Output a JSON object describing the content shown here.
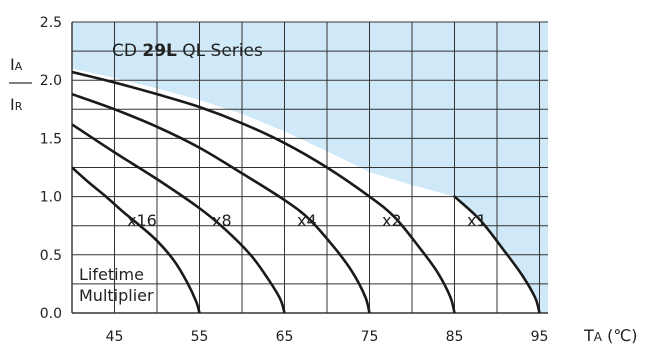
{
  "chart_data": {
    "type": "line",
    "title_prefix": "CD ",
    "title_bold": "29L",
    "title_suffix": " QL Series",
    "ylabel_top": "I",
    "ylabel_top_sub": "A",
    "ylabel_bottom": "I",
    "ylabel_bottom_sub": "R",
    "xlabel_main": "T",
    "xlabel_sub": "A",
    "xlabel_unit": " (℃)",
    "xlim": [
      40,
      96
    ],
    "ylim": [
      0,
      2.5
    ],
    "x_ticks": [
      45,
      55,
      65,
      75,
      85,
      95
    ],
    "y_ticks": [
      0.0,
      0.5,
      1.0,
      1.5,
      2.0,
      2.5
    ],
    "y_tick_labels": [
      "0.0",
      "0.5",
      "1.0",
      "1.5",
      "2.0",
      "2.5"
    ],
    "grid": true,
    "shading_color": "#cfe9f8",
    "curve_color": "#1a1a1a",
    "grid_color": "#333333",
    "annotation_lines": [
      "Lifetime",
      "Multiplier"
    ],
    "series": [
      {
        "name": "x16",
        "points": [
          [
            40,
            1.25
          ],
          [
            42,
            1.12
          ],
          [
            44,
            1.0
          ],
          [
            46,
            0.87
          ],
          [
            48,
            0.75
          ],
          [
            50,
            0.62
          ],
          [
            52,
            0.45
          ],
          [
            53.5,
            0.27
          ],
          [
            54.6,
            0.1
          ],
          [
            55,
            0.0
          ]
        ]
      },
      {
        "name": "x8",
        "points": [
          [
            40,
            1.62
          ],
          [
            45,
            1.38
          ],
          [
            50,
            1.15
          ],
          [
            55,
            0.9
          ],
          [
            58,
            0.72
          ],
          [
            61,
            0.5
          ],
          [
            63,
            0.3
          ],
          [
            64.5,
            0.12
          ],
          [
            65,
            0.0
          ]
        ]
      },
      {
        "name": "x4",
        "points": [
          [
            40,
            1.88
          ],
          [
            45,
            1.75
          ],
          [
            50,
            1.6
          ],
          [
            55,
            1.42
          ],
          [
            60,
            1.2
          ],
          [
            65,
            0.97
          ],
          [
            68,
            0.8
          ],
          [
            71,
            0.55
          ],
          [
            73,
            0.35
          ],
          [
            74.5,
            0.14
          ],
          [
            75,
            0.0
          ]
        ]
      },
      {
        "name": "x2",
        "points": [
          [
            40,
            2.07
          ],
          [
            45,
            1.98
          ],
          [
            50,
            1.88
          ],
          [
            55,
            1.77
          ],
          [
            60,
            1.63
          ],
          [
            65,
            1.46
          ],
          [
            70,
            1.25
          ],
          [
            75,
            1.0
          ],
          [
            78,
            0.82
          ],
          [
            81,
            0.55
          ],
          [
            83,
            0.35
          ],
          [
            84.5,
            0.14
          ],
          [
            85,
            0.0
          ]
        ]
      },
      {
        "name": "x1",
        "points": [
          [
            85,
            1.0
          ],
          [
            88,
            0.8
          ],
          [
            91,
            0.52
          ],
          [
            93,
            0.32
          ],
          [
            94.5,
            0.13
          ],
          [
            95,
            0.0
          ]
        ]
      }
    ],
    "shade_upper_boundary": [
      [
        40,
        2.1
      ],
      [
        45,
        2.02
      ],
      [
        50,
        1.93
      ],
      [
        55,
        1.83
      ],
      [
        60,
        1.71
      ],
      [
        65,
        1.56
      ],
      [
        70,
        1.39
      ],
      [
        75,
        1.21
      ],
      [
        80,
        1.1
      ],
      [
        85,
        1.0
      ],
      [
        88,
        0.8
      ],
      [
        91,
        0.52
      ],
      [
        93,
        0.32
      ],
      [
        94.5,
        0.13
      ],
      [
        95,
        0.0
      ],
      [
        96,
        0.0
      ]
    ],
    "curve_labels": [
      {
        "text": "x16",
        "x": 46,
        "y": 0.8
      },
      {
        "text": "x8",
        "x": 56,
        "y": 0.8
      },
      {
        "text": "x4",
        "x": 66,
        "y": 0.8
      },
      {
        "text": "x2",
        "x": 76,
        "y": 0.8
      },
      {
        "text": "x1",
        "x": 86,
        "y": 0.8
      }
    ]
  }
}
